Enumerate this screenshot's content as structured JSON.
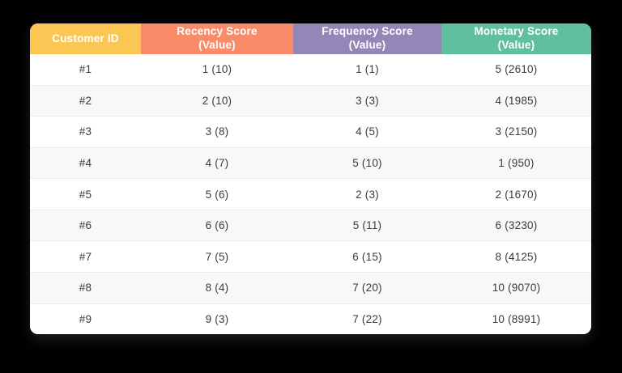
{
  "page": {
    "background_color": "#000000",
    "card_color": "#ffffff",
    "row_stripe_color": "#f8f8f9",
    "row_divider_color": "#ececec",
    "body_text_color": "#3b3b3b",
    "header_text_color": "#ffffff"
  },
  "table": {
    "columns": [
      {
        "id": "customer_id",
        "label": "Customer ID",
        "sublabel": "",
        "color": "#fac654"
      },
      {
        "id": "recency",
        "label": "Recency Score",
        "sublabel": "(Value)",
        "color": "#fa8b69"
      },
      {
        "id": "frequency",
        "label": "Frequency Score",
        "sublabel": "(Value)",
        "color": "#9287b7"
      },
      {
        "id": "monetary",
        "label": "Monetary Score",
        "sublabel": "(Value)",
        "color": "#61bfa1"
      }
    ],
    "rows": [
      {
        "customer_id": "#1",
        "recency": "1 (10)",
        "frequency": "1 (1)",
        "monetary": "5 (2610)"
      },
      {
        "customer_id": "#2",
        "recency": "2 (10)",
        "frequency": "3 (3)",
        "monetary": "4 (1985)"
      },
      {
        "customer_id": "#3",
        "recency": "3 (8)",
        "frequency": "4 (5)",
        "monetary": "3 (2150)"
      },
      {
        "customer_id": "#4",
        "recency": "4 (7)",
        "frequency": "5 (10)",
        "monetary": "1 (950)"
      },
      {
        "customer_id": "#5",
        "recency": "5 (6)",
        "frequency": "2 (3)",
        "monetary": "2 (1670)"
      },
      {
        "customer_id": "#6",
        "recency": "6 (6)",
        "frequency": "5 (11)",
        "monetary": "6 (3230)"
      },
      {
        "customer_id": "#7",
        "recency": "7 (5)",
        "frequency": "6 (15)",
        "monetary": "8 (4125)"
      },
      {
        "customer_id": "#8",
        "recency": "8 (4)",
        "frequency": "7 (20)",
        "monetary": "10 (9070)"
      },
      {
        "customer_id": "#9",
        "recency": "9 (3)",
        "frequency": "7 (22)",
        "monetary": "10 (8991)"
      }
    ]
  },
  "chart_data": {
    "type": "table",
    "title": "",
    "columns": [
      "Customer ID",
      "Recency Score (Value)",
      "Frequency Score (Value)",
      "Monetary Score (Value)"
    ],
    "rows": [
      [
        "#1",
        "1 (10)",
        "1 (1)",
        "5 (2610)"
      ],
      [
        "#2",
        "2 (10)",
        "3 (3)",
        "4 (1985)"
      ],
      [
        "#3",
        "3 (8)",
        "4 (5)",
        "3 (2150)"
      ],
      [
        "#4",
        "4 (7)",
        "5 (10)",
        "1 (950)"
      ],
      [
        "#5",
        "5 (6)",
        "2 (3)",
        "2 (1670)"
      ],
      [
        "#6",
        "6 (6)",
        "5 (11)",
        "6 (3230)"
      ],
      [
        "#7",
        "7 (5)",
        "6 (15)",
        "8 (4125)"
      ],
      [
        "#8",
        "8 (4)",
        "7 (20)",
        "10 (9070)"
      ],
      [
        "#9",
        "9 (3)",
        "7 (22)",
        "10 (8991)"
      ]
    ]
  }
}
